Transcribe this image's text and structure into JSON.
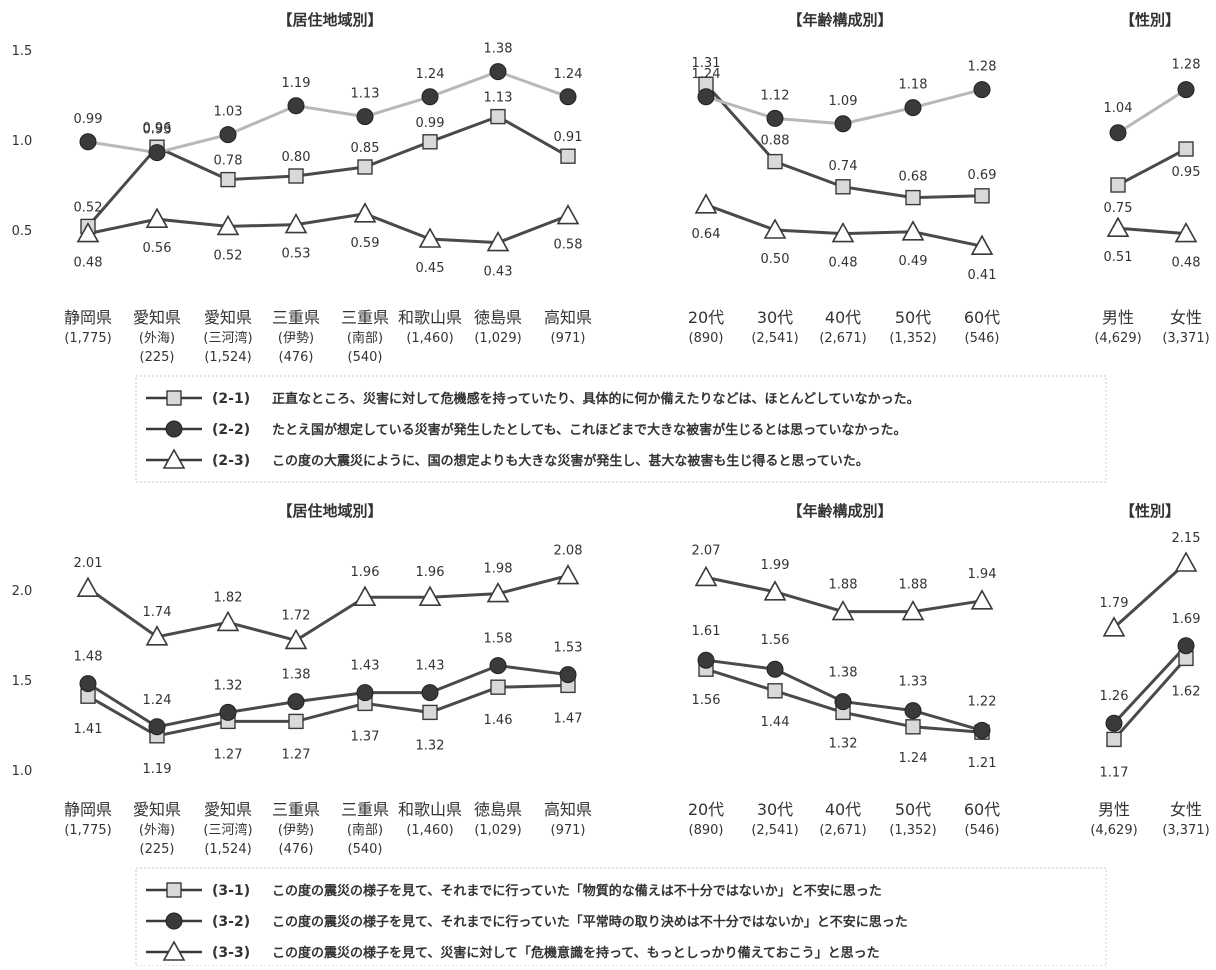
{
  "chart_data": [
    {
      "type": "line",
      "title": "【居住地域別】",
      "categories": [
        {
          "name": "静岡県",
          "sub": "(1,775)"
        },
        {
          "name": "愛知県",
          "sub": "(外海)",
          "sub2": "(225)"
        },
        {
          "name": "愛知県",
          "sub": "(三河湾)",
          "sub2": "(1,524)"
        },
        {
          "name": "三重県",
          "sub": "(伊勢)",
          "sub2": "(476)"
        },
        {
          "name": "三重県",
          "sub": "(南部)",
          "sub2": "(540)"
        },
        {
          "name": "和歌山県",
          "sub": "(1,460)"
        },
        {
          "name": "徳島県",
          "sub": "(1,029)"
        },
        {
          "name": "高知県",
          "sub": "(971)"
        }
      ],
      "yticks": [
        "1.5",
        "1.0",
        "0.5"
      ],
      "ylim": [
        0.5,
        1.5
      ],
      "series": [
        {
          "marker": "square",
          "values": [
            0.52,
            0.96,
            0.78,
            0.8,
            0.85,
            0.99,
            1.13,
            0.91
          ],
          "labels": [
            "0.52",
            "0.96",
            "0.78",
            "0.80",
            "0.85",
            "0.99",
            "1.13",
            "0.91"
          ]
        },
        {
          "marker": "circle",
          "values": [
            0.99,
            0.93,
            1.03,
            1.19,
            1.13,
            1.24,
            1.38,
            1.24
          ],
          "labels": [
            "0.99",
            "0.93",
            "1.03",
            "1.19",
            "1.13",
            "1.24",
            "1.38",
            "1.24"
          ]
        },
        {
          "marker": "triangle",
          "values": [
            0.48,
            0.56,
            0.52,
            0.53,
            0.59,
            0.45,
            0.43,
            0.58
          ],
          "labels": [
            "0.48",
            "0.56",
            "0.52",
            "0.53",
            "0.59",
            "0.45",
            "0.43",
            "0.58"
          ]
        }
      ]
    },
    {
      "type": "line",
      "title": "【年齢構成別】",
      "categories": [
        {
          "name": "20代",
          "sub": "(890)"
        },
        {
          "name": "30代",
          "sub": "(2,541)"
        },
        {
          "name": "40代",
          "sub": "(2,671)"
        },
        {
          "name": "50代",
          "sub": "(1,352)"
        },
        {
          "name": "60代",
          "sub": "(546)"
        }
      ],
      "ylim": [
        0.5,
        1.5
      ],
      "series": [
        {
          "marker": "square",
          "values": [
            1.31,
            0.88,
            0.74,
            0.68,
            0.69
          ],
          "labels": [
            "1.31",
            "0.88",
            "0.74",
            "0.68",
            "0.69"
          ]
        },
        {
          "marker": "circle",
          "values": [
            1.24,
            1.12,
            1.09,
            1.18,
            1.28
          ],
          "labels": [
            "1.24",
            "1.12",
            "1.09",
            "1.18",
            "1.28"
          ]
        },
        {
          "marker": "triangle",
          "values": [
            0.64,
            0.5,
            0.48,
            0.49,
            0.41
          ],
          "labels": [
            "0.64",
            "0.50",
            "0.48",
            "0.49",
            "0.41"
          ]
        }
      ]
    },
    {
      "type": "line",
      "title": "【性別】",
      "categories": [
        {
          "name": "男性",
          "sub": "(4,629)"
        },
        {
          "name": "女性",
          "sub": "(3,371)"
        }
      ],
      "ylim": [
        0.5,
        1.5
      ],
      "series": [
        {
          "marker": "square",
          "values": [
            0.75,
            0.95
          ],
          "labels": [
            "0.75",
            "0.95"
          ]
        },
        {
          "marker": "circle",
          "values": [
            1.04,
            1.28
          ],
          "labels": [
            "1.04",
            "1.28"
          ]
        },
        {
          "marker": "triangle",
          "values": [
            0.51,
            0.48
          ],
          "labels": [
            "0.51",
            "0.48"
          ]
        }
      ]
    },
    {
      "type": "line",
      "title": "【居住地域別】",
      "categories": [
        {
          "name": "静岡県",
          "sub": "(1,775)"
        },
        {
          "name": "愛知県",
          "sub": "(外海)",
          "sub2": "(225)"
        },
        {
          "name": "愛知県",
          "sub": "(三河湾)",
          "sub2": "(1,524)"
        },
        {
          "name": "三重県",
          "sub": "(伊勢)",
          "sub2": "(476)"
        },
        {
          "name": "三重県",
          "sub": "(南部)",
          "sub2": "(540)"
        },
        {
          "name": "和歌山県",
          "sub": "(1,460)"
        },
        {
          "name": "徳島県",
          "sub": "(1,029)"
        },
        {
          "name": "高知県",
          "sub": "(971)"
        }
      ],
      "yticks": [
        "2.0",
        "1.5",
        "1.0"
      ],
      "ylim": [
        1.0,
        2.0
      ],
      "series": [
        {
          "marker": "square",
          "values": [
            1.41,
            1.19,
            1.27,
            1.27,
            1.37,
            1.32,
            1.46,
            1.47
          ],
          "labels": [
            "1.41",
            "1.19",
            "1.27",
            "1.27",
            "1.37",
            "1.32",
            "1.46",
            "1.47"
          ]
        },
        {
          "marker": "circle",
          "values": [
            1.48,
            1.24,
            1.32,
            1.38,
            1.43,
            1.43,
            1.58,
            1.53
          ],
          "labels": [
            "1.48",
            "1.24",
            "1.32",
            "1.38",
            "1.43",
            "1.43",
            "1.58",
            "1.53"
          ]
        },
        {
          "marker": "triangle",
          "values": [
            2.01,
            1.74,
            1.82,
            1.72,
            1.96,
            1.96,
            1.98,
            2.08
          ],
          "labels": [
            "2.01",
            "1.74",
            "1.82",
            "1.72",
            "1.96",
            "1.96",
            "1.98",
            "2.08"
          ]
        }
      ]
    },
    {
      "type": "line",
      "title": "【年齢構成別】",
      "categories": [
        {
          "name": "20代",
          "sub": "(890)"
        },
        {
          "name": "30代",
          "sub": "(2,541)"
        },
        {
          "name": "40代",
          "sub": "(2,671)"
        },
        {
          "name": "50代",
          "sub": "(1,352)"
        },
        {
          "name": "60代",
          "sub": "(546)"
        }
      ],
      "ylim": [
        1.0,
        2.0
      ],
      "series": [
        {
          "marker": "square",
          "values": [
            1.56,
            1.44,
            1.32,
            1.24,
            1.21
          ],
          "labels": [
            "1.56",
            "1.44",
            "1.32",
            "1.24",
            "1.21"
          ]
        },
        {
          "marker": "circle",
          "values": [
            1.61,
            1.56,
            1.38,
            1.33,
            1.22
          ],
          "labels": [
            "1.61",
            "1.56",
            "1.38",
            "1.33",
            "1.22"
          ]
        },
        {
          "marker": "triangle",
          "values": [
            2.07,
            1.99,
            1.88,
            1.88,
            1.94
          ],
          "labels": [
            "2.07",
            "1.99",
            "1.88",
            "1.88",
            "1.94"
          ]
        }
      ]
    },
    {
      "type": "line",
      "title": "【性別】",
      "categories": [
        {
          "name": "男性",
          "sub": "(4,629)"
        },
        {
          "name": "女性",
          "sub": "(3,371)"
        }
      ],
      "ylim": [
        1.0,
        2.0
      ],
      "series": [
        {
          "marker": "square",
          "values": [
            1.17,
            1.62
          ],
          "labels": [
            "1.17",
            "1.62"
          ]
        },
        {
          "marker": "circle",
          "values": [
            1.26,
            1.69
          ],
          "labels": [
            "1.26",
            "1.69"
          ]
        },
        {
          "marker": "triangle",
          "values": [
            1.79,
            2.15
          ],
          "labels": [
            "1.79",
            "2.15"
          ]
        }
      ]
    }
  ],
  "legends": [
    [
      {
        "marker": "square",
        "code": "(2-1)",
        "text": "正直なところ、災害に対して危機感を持っていたり、具体的に何か備えたりなどは、ほとんどしていなかった。"
      },
      {
        "marker": "circle",
        "code": "(2-2)",
        "text": "たとえ国が想定している災害が発生したとしても、これほどまで大きな被害が生じるとは思っていなかった。"
      },
      {
        "marker": "triangle",
        "code": "(2-3)",
        "text": "この度の大震災にように、国の想定よりも大きな災害が発生し、甚大な被害も生じ得ると思っていた。"
      }
    ],
    [
      {
        "marker": "square",
        "code": "(3-1)",
        "text": "この度の震災の様子を見て、それまでに行っていた「物質的な備えは不十分ではないか」と不安に思った"
      },
      {
        "marker": "circle",
        "code": "(3-2)",
        "text": "この度の震災の様子を見て、それまでに行っていた「平常時の取り決めは不十分ではないか」と不安に思った"
      },
      {
        "marker": "triangle",
        "code": "(3-3)",
        "text": "この度の震災の様子を見て、災害に対して「危機意識を持って、もっとしっかり備えておこう」と思った"
      }
    ]
  ],
  "colors": {
    "line_square": "#4a4a4a",
    "line_circle_top": "#b8b8b8",
    "line_circle_bottom": "#4a4a4a",
    "line_triangle": "#4a4a4a",
    "marker_square_fill": "#d9d9d9",
    "marker_circle_fill": "#3a3a3a",
    "marker_triangle_fill": "#ffffff",
    "text": "#333333"
  }
}
